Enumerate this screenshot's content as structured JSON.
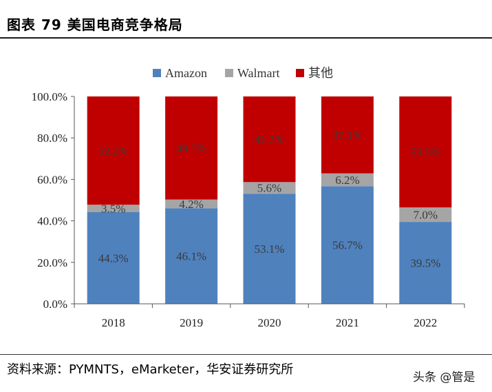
{
  "header": {
    "title": "图表 79  美国电商竞争格局"
  },
  "footer": {
    "source": "资料来源：PYMNTS，eMarketer，华安证券研究所",
    "watermark": "头条 @管是"
  },
  "chart_data": {
    "type": "bar",
    "stacked": true,
    "title": "",
    "xlabel": "",
    "ylabel": "",
    "ylim": [
      0,
      100
    ],
    "yticks": [
      "0.0%",
      "20.0%",
      "40.0%",
      "60.0%",
      "80.0%",
      "100.0%"
    ],
    "categories": [
      "2018",
      "2019",
      "2020",
      "2021",
      "2022"
    ],
    "legend_position": "top",
    "series": [
      {
        "name": "Amazon",
        "color": "#4f81bd",
        "values": [
          44.3,
          46.1,
          53.1,
          56.7,
          39.5
        ],
        "labels": [
          "44.3%",
          "46.1%",
          "53.1%",
          "56.7%",
          "39.5%"
        ]
      },
      {
        "name": "Walmart",
        "color": "#a5a5a5",
        "values": [
          3.5,
          4.2,
          5.6,
          6.2,
          7.0
        ],
        "labels": [
          "3.5%",
          "4.2%",
          "5.6%",
          "6.2%",
          "7.0%"
        ]
      },
      {
        "name": "其他",
        "color": "#c00000",
        "values": [
          52.2,
          49.7,
          41.3,
          37.1,
          53.5
        ],
        "labels": [
          "52.2%",
          "49.7%",
          "41.3%",
          "37.1%",
          "53.5%"
        ]
      }
    ]
  }
}
